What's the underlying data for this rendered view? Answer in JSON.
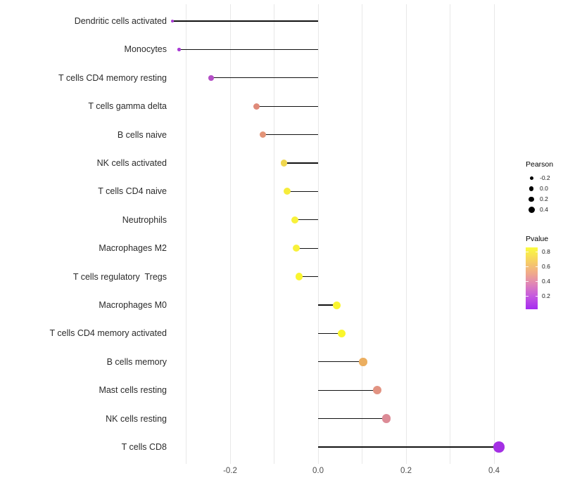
{
  "figure": {
    "background": "#ffffff",
    "stem_color": "#111111"
  },
  "chart_data": {
    "type": "scatter",
    "style": "lollipop",
    "orientation": "horizontal",
    "title": "",
    "xlabel": "",
    "ylabel": "",
    "x_axis": {
      "ticks": [
        -0.2,
        0.0,
        0.2,
        0.4
      ],
      "tick_labels": [
        "-0.2",
        "0.0",
        "0.2",
        "0.4"
      ],
      "range": [
        -0.36,
        0.46
      ],
      "gridlines": [
        -0.3,
        -0.2,
        -0.1,
        0.0,
        0.1,
        0.2,
        0.3,
        0.4
      ],
      "grid_on": true
    },
    "legend_position": "right",
    "points": [
      {
        "category": "Dendritic cells activated",
        "pearson": -0.331,
        "pvalue_est": 0.1,
        "color": "#a93bd4",
        "diameter": 4
      },
      {
        "category": "Monocytes",
        "pearson": -0.316,
        "pvalue_est": 0.11,
        "color": "#a93bd4",
        "diameter": 4.5
      },
      {
        "category": "T cells CD4 memory resting",
        "pearson": -0.243,
        "pvalue_est": 0.22,
        "color": "#b44ec6",
        "diameter": 7.5
      },
      {
        "category": "T cells gamma delta",
        "pearson": -0.14,
        "pvalue_est": 0.55,
        "color": "#df8a79",
        "diameter": 9
      },
      {
        "category": "B cells naive",
        "pearson": -0.125,
        "pvalue_est": 0.57,
        "color": "#e39478",
        "diameter": 9
      },
      {
        "category": "NK cells activated",
        "pearson": -0.078,
        "pvalue_est": 0.72,
        "color": "#efd64e",
        "diameter": 9.5
      },
      {
        "category": "T cells CD4 naive",
        "pearson": -0.07,
        "pvalue_est": 0.76,
        "color": "#f6ec3b",
        "diameter": 10
      },
      {
        "category": "Neutrophils",
        "pearson": -0.053,
        "pvalue_est": 0.79,
        "color": "#f8f13a",
        "diameter": 10
      },
      {
        "category": "Macrophages M2",
        "pearson": -0.05,
        "pvalue_est": 0.79,
        "color": "#f8f13a",
        "diameter": 10
      },
      {
        "category": "T cells regulatory  Tregs",
        "pearson": -0.043,
        "pvalue_est": 0.81,
        "color": "#faf52f",
        "diameter": 10.5
      },
      {
        "category": "Macrophages M0",
        "pearson": 0.043,
        "pvalue_est": 0.81,
        "color": "#faf52f",
        "diameter": 11
      },
      {
        "category": "T cells CD4 memory activated",
        "pearson": 0.053,
        "pvalue_est": 0.82,
        "color": "#faf62c",
        "diameter": 11
      },
      {
        "category": "B cells memory",
        "pearson": 0.102,
        "pvalue_est": 0.62,
        "color": "#ebae60",
        "diameter": 11.5
      },
      {
        "category": "Mast cells resting",
        "pearson": 0.134,
        "pvalue_est": 0.55,
        "color": "#e29382",
        "diameter": 12
      },
      {
        "category": "NK cells resting",
        "pearson": 0.155,
        "pvalue_est": 0.48,
        "color": "#dc8b96",
        "diameter": 12.5
      },
      {
        "category": "T cells CD8",
        "pearson": 0.411,
        "pvalue_est": 0.07,
        "color": "#a430e4",
        "diameter": 15.5
      }
    ]
  },
  "legend_pearson": {
    "title": "Pearson",
    "dot_color": "#000000",
    "entries": [
      {
        "label": "-0.2",
        "diameter": 5
      },
      {
        "label": "0.0",
        "diameter": 6.5
      },
      {
        "label": "0.2",
        "diameter": 7.5
      },
      {
        "label": "0.4",
        "diameter": 9
      }
    ]
  },
  "legend_pvalue": {
    "title": "Pvalue",
    "tick_labels": [
      "0.8",
      "0.6",
      "0.4",
      "0.2"
    ],
    "gradient_top_to_bottom": [
      "#fafb3e",
      "#f7d45f",
      "#f0a98b",
      "#e187b4",
      "#c65bde",
      "#a52bf0"
    ]
  }
}
